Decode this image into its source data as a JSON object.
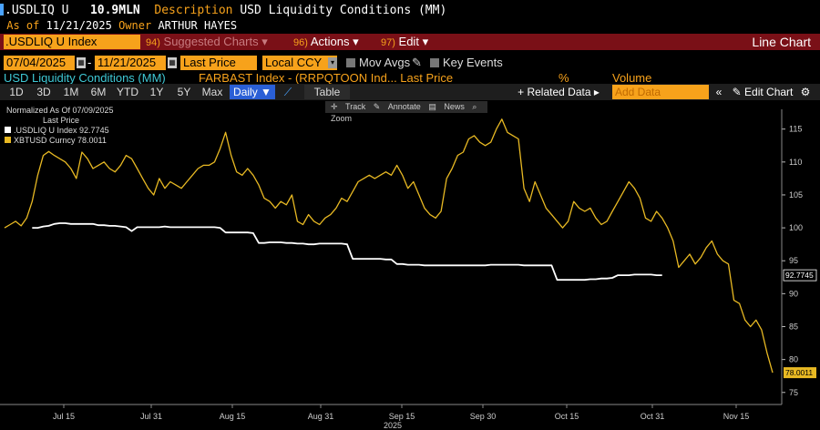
{
  "header": {
    "ticker_short": ".USDLIQ U",
    "value": "10.9MLN",
    "description_label": "Description",
    "description": "USD Liquidity Conditions (MM)",
    "as_of_label": "As of",
    "as_of_date": "11/21/2025",
    "owner_label": "Owner",
    "owner": "ARTHUR HAYES"
  },
  "toolbar": {
    "ticker": ".USDLIQ U Index",
    "suggested_num": "94)",
    "suggested": "Suggested Charts",
    "actions_num": "96)",
    "actions": "Actions",
    "edit_num": "97)",
    "edit": "Edit",
    "chart_type": "Line Chart"
  },
  "options": {
    "start_date": "07/04/2025",
    "end_date": "11/21/2025",
    "field": "Last Price",
    "currency": "Local CCY",
    "mov_avgs": "Mov Avgs",
    "key_events": "Key Events"
  },
  "subtitle": {
    "left": "USD Liquidity Conditions (MM)",
    "mid": "FARBAST Index - (RRPQTOON Ind... Last Price",
    "pct": "%",
    "volume": "Volume"
  },
  "periods": [
    "1D",
    "3D",
    "1M",
    "6M",
    "YTD",
    "1Y",
    "5Y",
    "Max"
  ],
  "period_selected": "Daily",
  "table_label": "Table",
  "related_data": "+ Related Data",
  "add_data_placeholder": "Add Data",
  "edit_chart": "Edit Chart",
  "chart_tools": [
    "Track",
    "Annotate",
    "News",
    "Zoom"
  ],
  "colors": {
    "usdliq": "#ffffff",
    "xbt": "#e8b923",
    "accent": "#f7a21b",
    "toolbar_bg": "#7a1017"
  },
  "chart_data": {
    "type": "line",
    "legend_title": "Normalized As Of 07/09/2025",
    "legend_subtitle": "Last Price",
    "x_ticks": [
      "Jul 15",
      "Jul 31",
      "Aug 15",
      "Aug 31",
      "Sep 15",
      "Sep 30",
      "Oct 15",
      "Oct 31",
      "Nov 15"
    ],
    "x_year": "2025",
    "y_ticks": [
      75,
      80,
      85,
      90,
      95,
      100,
      105,
      110,
      115
    ],
    "ylim": [
      74,
      118
    ],
    "series": [
      {
        "name": ".USDLIQ U Index",
        "last": "92.7745",
        "start_index": 5,
        "values": [
          100,
          100,
          100.2,
          100.3,
          100.6,
          100.7,
          100.7,
          100.6,
          100.6,
          100.6,
          100.6,
          100.6,
          100.4,
          100.4,
          100.3,
          100.3,
          100.2,
          100.1,
          99.5,
          100.1,
          100.1,
          100.1,
          100.1,
          100.1,
          100.2,
          100.1,
          100.1,
          100.1,
          100.1,
          100.1,
          100.1,
          100.1,
          100.1,
          100.1,
          100.0,
          99.3,
          99.3,
          99.3,
          99.3,
          99.3,
          99.2,
          97.7,
          97.7,
          97.8,
          97.8,
          97.8,
          97.7,
          97.7,
          97.6,
          97.6,
          97.5,
          97.5,
          97.6,
          97.6,
          97.6,
          97.6,
          97.6,
          97.5,
          95.3,
          95.3,
          95.3,
          95.3,
          95.3,
          95.3,
          95.2,
          95.2,
          94.5,
          94.5,
          94.4,
          94.4,
          94.4,
          94.3,
          94.3,
          94.3,
          94.3,
          94.3,
          94.3,
          94.3,
          94.3,
          94.3,
          94.3,
          94.3,
          94.3,
          94.4,
          94.4,
          94.4,
          94.4,
          94.4,
          94.4,
          94.3,
          94.3,
          94.3,
          94.3,
          94.3,
          94.3,
          92.1,
          92.1,
          92.1,
          92.1,
          92.1,
          92.1,
          92.2,
          92.2,
          92.3,
          92.3,
          92.4,
          92.8,
          92.8,
          92.8,
          92.9,
          92.9,
          92.9,
          92.9,
          92.8,
          92.8
        ]
      },
      {
        "name": "XBTUSD Curncy",
        "last": "78.0011",
        "start_index": 0,
        "values": [
          100,
          100.5,
          101,
          100.3,
          101.5,
          104,
          108,
          111,
          111.6,
          111,
          110.5,
          110,
          109,
          107.5,
          111.5,
          110.5,
          109,
          109.5,
          110,
          109,
          108.5,
          109.5,
          111,
          110.5,
          109,
          107.5,
          106,
          105,
          107.5,
          106,
          107,
          106.5,
          106,
          107,
          108,
          109,
          109.5,
          109.5,
          110,
          112,
          114.5,
          111,
          108.5,
          108,
          109,
          108,
          106.5,
          104.5,
          104,
          103,
          104,
          103.5,
          105,
          101,
          100.5,
          102,
          101,
          100.5,
          101.5,
          102,
          103,
          104.5,
          104,
          105.5,
          107,
          107.5,
          108,
          107.5,
          108,
          108.5,
          108,
          109.5,
          108,
          106,
          107,
          105,
          103,
          102,
          101.5,
          102.5,
          107.5,
          109,
          111,
          111.5,
          113.5,
          114,
          113,
          112.5,
          113,
          115,
          116.5,
          114.5,
          114,
          113.5,
          106,
          104,
          107,
          105,
          103,
          102,
          101,
          100,
          101,
          104,
          103,
          102.5,
          103,
          101.5,
          100.5,
          101,
          102.5,
          104,
          105.5,
          107,
          106,
          104.5,
          101.5,
          101,
          102.5,
          101.5,
          100,
          98,
          94,
          95,
          96,
          94.5,
          95.5,
          97,
          98,
          96,
          95,
          94.5,
          89,
          88.5,
          86,
          85,
          86,
          84.5,
          81,
          78
        ]
      }
    ]
  }
}
